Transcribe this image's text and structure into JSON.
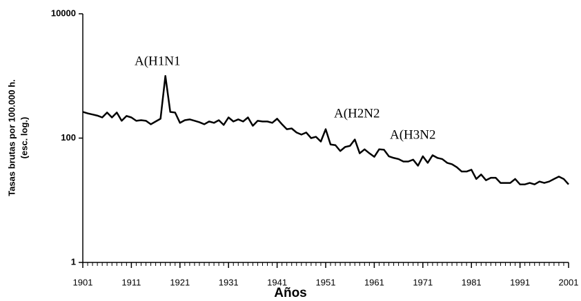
{
  "chart_data": {
    "type": "line",
    "ylabel": [
      "Tasas brutas por 100.000 h.",
      "(esc. log.)"
    ],
    "xlabel": "Años",
    "annotations": [
      "A(H1N1",
      "A(H2N2",
      "A(H3N2"
    ],
    "x": [
      1901,
      1902,
      1903,
      1904,
      1905,
      1906,
      1907,
      1908,
      1909,
      1910,
      1911,
      1912,
      1913,
      1914,
      1915,
      1916,
      1917,
      1918,
      1919,
      1920,
      1921,
      1922,
      1923,
      1924,
      1925,
      1926,
      1927,
      1928,
      1929,
      1930,
      1931,
      1932,
      1933,
      1934,
      1935,
      1936,
      1937,
      1938,
      1939,
      1940,
      1941,
      1942,
      1943,
      1944,
      1945,
      1946,
      1947,
      1948,
      1949,
      1950,
      1951,
      1952,
      1953,
      1954,
      1955,
      1956,
      1957,
      1958,
      1959,
      1960,
      1961,
      1962,
      1963,
      1964,
      1965,
      1966,
      1967,
      1968,
      1969,
      1970,
      1971,
      1972,
      1973,
      1974,
      1975,
      1976,
      1977,
      1978,
      1979,
      1980,
      1981,
      1982,
      1983,
      1984,
      1985,
      1986,
      1987,
      1988,
      1989,
      1990,
      1991,
      1992,
      1993,
      1994,
      1995,
      1996,
      1997,
      1998,
      1999,
      2000,
      2001
    ],
    "series": [
      {
        "color": "#000000",
        "values": [
          264,
          250,
          240,
          230,
          215,
          258,
          215,
          258,
          190,
          227,
          215,
          190,
          194,
          190,
          167,
          185,
          205,
          1000,
          264,
          258,
          176,
          194,
          200,
          190,
          180,
          167,
          185,
          176,
          194,
          163,
          215,
          185,
          200,
          185,
          215,
          158,
          190,
          185,
          185,
          176,
          205,
          167,
          139,
          143,
          123,
          114,
          123,
          100,
          105,
          88,
          139,
          79,
          77,
          62,
          72,
          75,
          95,
          57,
          66,
          57,
          50,
          66,
          65,
          51,
          48,
          46,
          42,
          42,
          45,
          36,
          51,
          40,
          53,
          48,
          46,
          40,
          38,
          34,
          29,
          29,
          31,
          22,
          26,
          21,
          23,
          23,
          19,
          19,
          19,
          22,
          18,
          18,
          19,
          18,
          20,
          19,
          20,
          22,
          24,
          22,
          18
        ]
      }
    ],
    "xlim": [
      1901,
      2001
    ],
    "xticks": [
      1901,
      1911,
      1921,
      1931,
      1941,
      1951,
      1961,
      1971,
      1981,
      1991,
      2001
    ],
    "ylim": [
      1,
      10000
    ],
    "yticks": [
      1,
      100,
      10000
    ],
    "yscale": "log"
  }
}
